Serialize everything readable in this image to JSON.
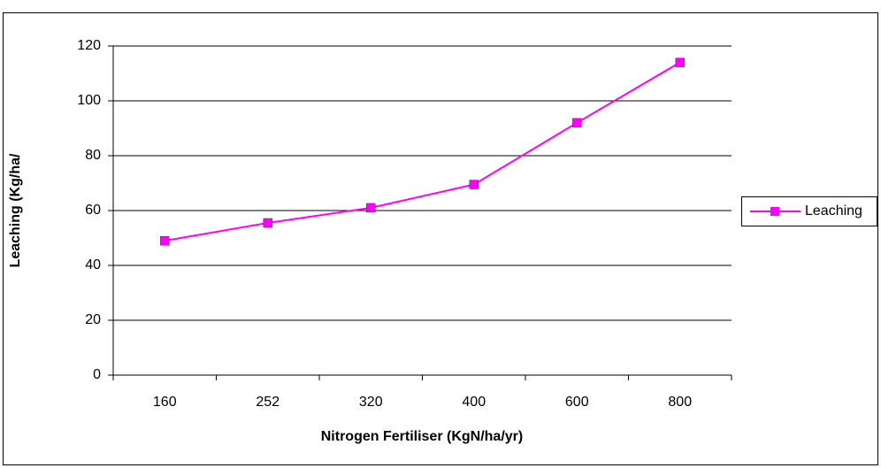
{
  "chart_data": {
    "type": "line",
    "x_label": "Nitrogen Fertiliser (KgN/ha/yr)",
    "y_label": "Leaching (Kg/ha/",
    "categories": [
      "160",
      "252",
      "320",
      "400",
      "600",
      "800"
    ],
    "series": [
      {
        "name": "Leaching",
        "color": "#ff00ff",
        "values": [
          49,
          55.5,
          61,
          69.5,
          92,
          114
        ]
      }
    ],
    "ylim": [
      0,
      120
    ],
    "yticks": [
      0,
      20,
      40,
      60,
      80,
      100,
      120
    ],
    "grid": true,
    "legend": "right"
  }
}
